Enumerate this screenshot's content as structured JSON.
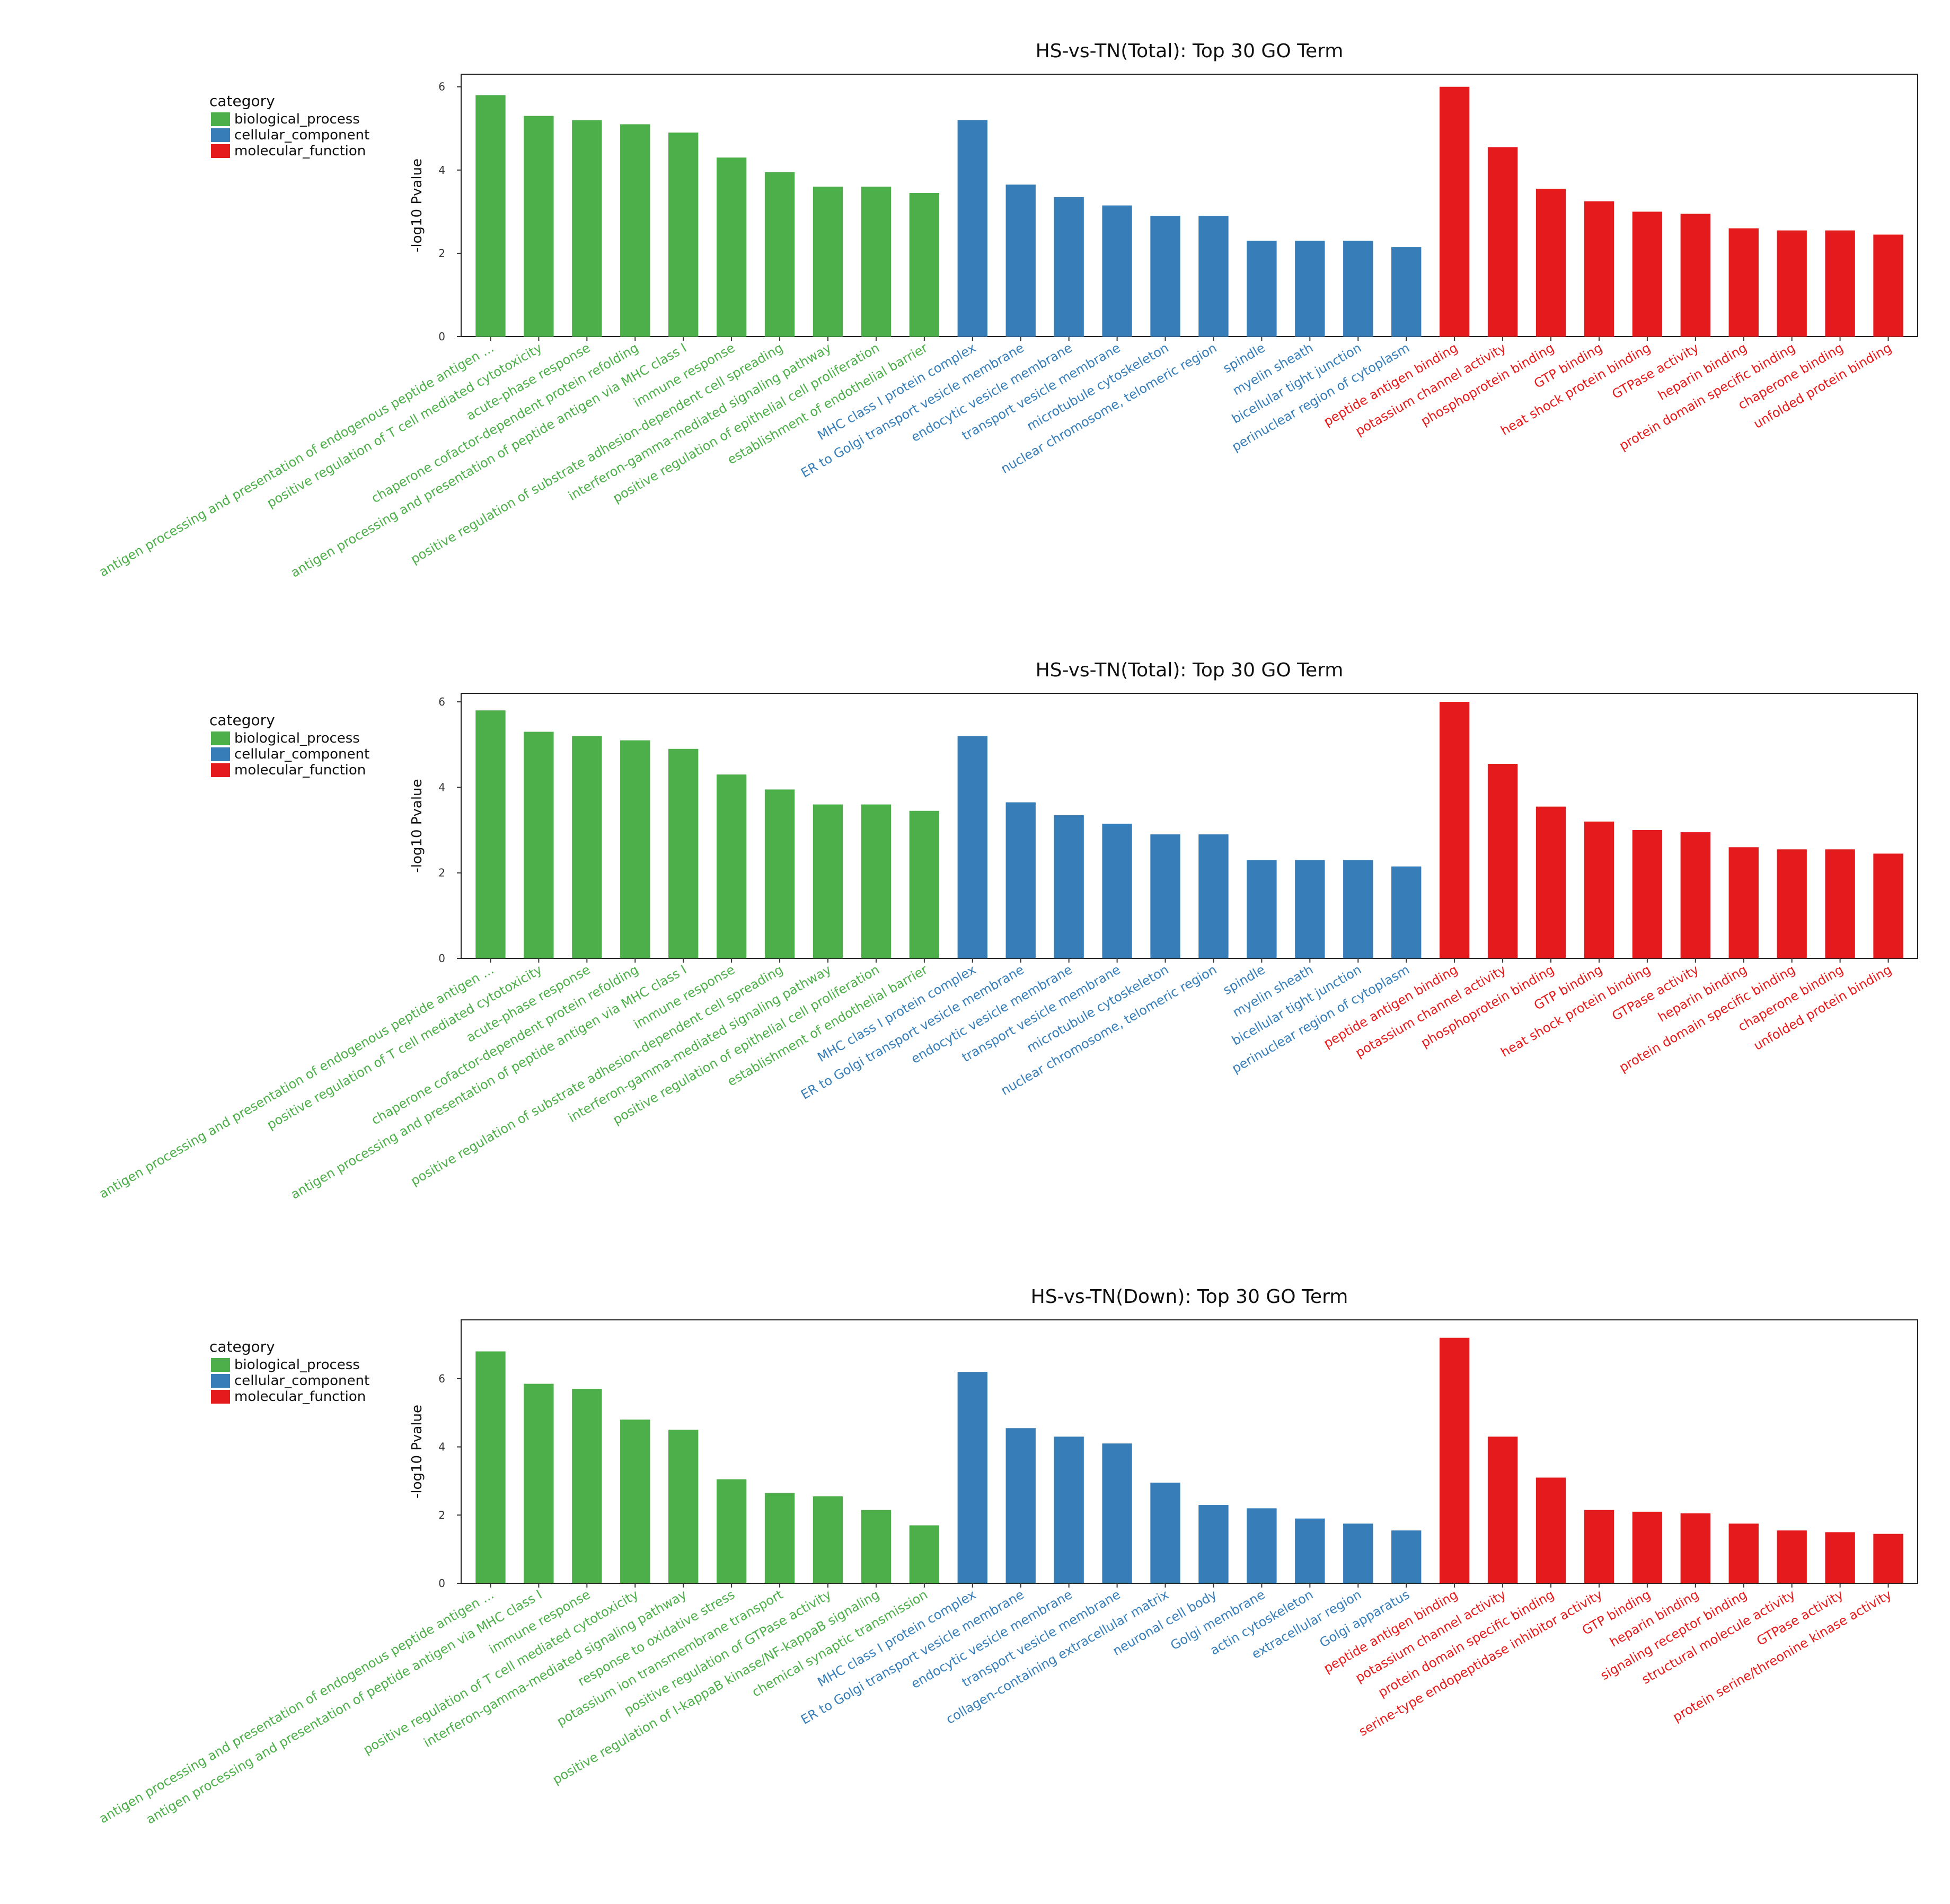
{
  "colors": {
    "biological_process": "#4daf4a",
    "cellular_component": "#377eb8",
    "molecular_function": "#e41a1c"
  },
  "chart_data": [
    {
      "type": "bar",
      "title": "HS-vs-TN(Total): Top 30 GO Term",
      "ylabel": "-log10 Pvalue",
      "ylim": [
        0,
        6.2
      ],
      "yticks": [
        0,
        2,
        4,
        6
      ],
      "legend": {
        "title": "category",
        "position": "top-left",
        "entries": [
          "biological_process",
          "cellular_component",
          "molecular_function"
        ]
      },
      "categories": [
        "antigen processing and presentation of endogenous peptide antigen ...",
        "positive regulation of T cell mediated cytotoxicity",
        "acute-phase response",
        "chaperone cofactor-dependent protein refolding",
        "antigen processing and presentation of peptide antigen via MHC class I",
        "immune response",
        "positive regulation of substrate adhesion-dependent cell spreading",
        "interferon-gamma-mediated signaling pathway",
        "positive regulation of epithelial cell proliferation",
        "establishment of endothelial barrier",
        "MHC class I protein complex",
        "ER to Golgi transport vesicle membrane",
        "endocytic vesicle membrane",
        "transport vesicle membrane",
        "microtubule cytoskeleton",
        "nuclear chromosome, telomeric region",
        "spindle",
        "myelin sheath",
        "bicellular tight junction",
        "perinuclear region of cytoplasm",
        "peptide antigen binding",
        "potassium channel activity",
        "phosphoprotein binding",
        "GTP binding",
        "heat shock protein binding",
        "GTPase activity",
        "heparin binding",
        "protein domain specific binding",
        "chaperone binding",
        "unfolded protein binding"
      ],
      "groups": [
        "biological_process",
        "biological_process",
        "biological_process",
        "biological_process",
        "biological_process",
        "biological_process",
        "biological_process",
        "biological_process",
        "biological_process",
        "biological_process",
        "cellular_component",
        "cellular_component",
        "cellular_component",
        "cellular_component",
        "cellular_component",
        "cellular_component",
        "cellular_component",
        "cellular_component",
        "cellular_component",
        "cellular_component",
        "molecular_function",
        "molecular_function",
        "molecular_function",
        "molecular_function",
        "molecular_function",
        "molecular_function",
        "molecular_function",
        "molecular_function",
        "molecular_function",
        "molecular_function"
      ],
      "values": [
        5.8,
        5.3,
        5.2,
        5.1,
        4.9,
        4.3,
        3.95,
        3.6,
        3.6,
        3.45,
        5.2,
        3.65,
        3.35,
        3.15,
        2.9,
        2.9,
        2.3,
        2.3,
        2.3,
        2.15,
        6.0,
        4.55,
        3.55,
        3.25,
        3.0,
        2.95,
        2.6,
        2.55,
        2.55,
        2.45
      ]
    },
    {
      "type": "bar",
      "title": "HS-vs-TN(Total): Top 30 GO Term",
      "ylabel": "-log10 Pvalue",
      "ylim": [
        0,
        6.1
      ],
      "yticks": [
        0,
        2,
        4,
        6
      ],
      "legend": {
        "title": "category",
        "position": "top-left",
        "entries": [
          "biological_process",
          "cellular_component",
          "molecular_function"
        ]
      },
      "categories": [
        "antigen processing and presentation of endogenous peptide antigen ...",
        "positive regulation of T cell mediated cytotoxicity",
        "acute-phase response",
        "chaperone cofactor-dependent protein refolding",
        "antigen processing and presentation of peptide antigen via MHC class I",
        "immune response",
        "positive regulation of substrate adhesion-dependent cell spreading",
        "interferon-gamma-mediated signaling pathway",
        "positive regulation of epithelial cell proliferation",
        "establishment of endothelial barrier",
        "MHC class I protein complex",
        "ER to Golgi transport vesicle membrane",
        "endocytic vesicle membrane",
        "transport vesicle membrane",
        "microtubule cytoskeleton",
        "nuclear chromosome, telomeric region",
        "spindle",
        "myelin sheath",
        "bicellular tight junction",
        "perinuclear region of cytoplasm",
        "peptide antigen binding",
        "potassium channel activity",
        "phosphoprotein binding",
        "GTP binding",
        "heat shock protein binding",
        "GTPase activity",
        "heparin binding",
        "protein domain specific binding",
        "chaperone binding",
        "unfolded protein binding"
      ],
      "groups": [
        "biological_process",
        "biological_process",
        "biological_process",
        "biological_process",
        "biological_process",
        "biological_process",
        "biological_process",
        "biological_process",
        "biological_process",
        "biological_process",
        "cellular_component",
        "cellular_component",
        "cellular_component",
        "cellular_component",
        "cellular_component",
        "cellular_component",
        "cellular_component",
        "cellular_component",
        "cellular_component",
        "cellular_component",
        "molecular_function",
        "molecular_function",
        "molecular_function",
        "molecular_function",
        "molecular_function",
        "molecular_function",
        "molecular_function",
        "molecular_function",
        "molecular_function",
        "molecular_function"
      ],
      "values": [
        5.8,
        5.3,
        5.2,
        5.1,
        4.9,
        4.3,
        3.95,
        3.6,
        3.6,
        3.45,
        5.2,
        3.65,
        3.35,
        3.15,
        2.9,
        2.9,
        2.3,
        2.3,
        2.3,
        2.15,
        6.0,
        4.55,
        3.55,
        3.2,
        3.0,
        2.95,
        2.6,
        2.55,
        2.55,
        2.45
      ]
    },
    {
      "type": "bar",
      "title": "HS-vs-TN(Down): Top 30 GO Term",
      "ylabel": "-log10 Pvalue",
      "ylim": [
        0,
        7.6
      ],
      "yticks": [
        0,
        2,
        4,
        6
      ],
      "legend": {
        "title": "category",
        "position": "top-left",
        "entries": [
          "biological_process",
          "cellular_component",
          "molecular_function"
        ]
      },
      "categories": [
        "antigen processing and presentation of endogenous peptide antigen ...",
        "antigen processing and presentation of peptide antigen via MHC class I",
        "immune response",
        "positive regulation of T cell mediated cytotoxicity",
        "interferon-gamma-mediated signaling pathway",
        "response to oxidative stress",
        "potassium ion transmembrane transport",
        "positive regulation of GTPase activity",
        "positive regulation of I-kappaB kinase/NF-kappaB signaling",
        "chemical synaptic transmission",
        "MHC class I protein complex",
        "ER to Golgi transport vesicle membrane",
        "endocytic vesicle membrane",
        "transport vesicle membrane",
        "collagen-containing extracellular matrix",
        "neuronal cell body",
        "Golgi membrane",
        "actin cytoskeleton",
        "extracellular region",
        "Golgi apparatus",
        "peptide antigen binding",
        "potassium channel activity",
        "protein domain specific binding",
        "serine-type endopeptidase inhibitor activity",
        "GTP binding",
        "heparin binding",
        "signaling receptor binding",
        "structural molecule activity",
        "GTPase activity",
        "protein serine/threonine kinase activity"
      ],
      "groups": [
        "biological_process",
        "biological_process",
        "biological_process",
        "biological_process",
        "biological_process",
        "biological_process",
        "biological_process",
        "biological_process",
        "biological_process",
        "biological_process",
        "cellular_component",
        "cellular_component",
        "cellular_component",
        "cellular_component",
        "cellular_component",
        "cellular_component",
        "cellular_component",
        "cellular_component",
        "cellular_component",
        "cellular_component",
        "molecular_function",
        "molecular_function",
        "molecular_function",
        "molecular_function",
        "molecular_function",
        "molecular_function",
        "molecular_function",
        "molecular_function",
        "molecular_function",
        "molecular_function"
      ],
      "values": [
        6.8,
        5.85,
        5.7,
        4.8,
        4.5,
        3.05,
        2.65,
        2.55,
        2.15,
        1.7,
        6.2,
        4.55,
        4.3,
        4.1,
        2.95,
        2.3,
        2.2,
        1.9,
        1.75,
        1.55,
        7.2,
        4.3,
        3.1,
        2.15,
        2.1,
        2.05,
        1.75,
        1.55,
        1.5,
        1.45
      ]
    }
  ]
}
